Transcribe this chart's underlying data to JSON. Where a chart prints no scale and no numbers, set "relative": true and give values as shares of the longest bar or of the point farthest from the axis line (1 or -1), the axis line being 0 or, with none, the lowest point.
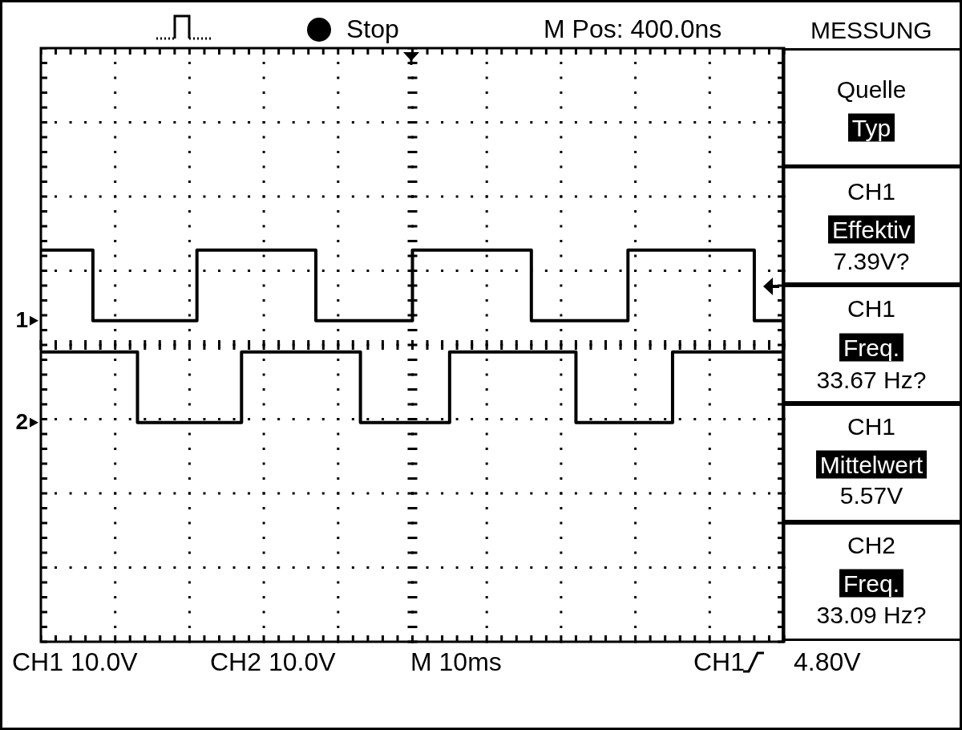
{
  "chart_data": {
    "type": "step",
    "relative": true,
    "grid": true,
    "legend": "left",
    "categories": [
      null,
      null,
      null,
      null,
      null,
      null,
      null,
      null,
      null,
      null,
      null,
      null,
      null,
      null,
      null,
      null,
      null,
      null,
      null,
      null,
      null,
      null,
      null,
      null,
      null,
      null,
      null,
      null,
      null,
      null,
      null,
      null,
      null,
      null,
      null,
      null,
      null,
      null,
      null,
      null,
      null,
      null,
      null,
      null,
      null,
      null,
      null,
      null,
      null,
      null,
      null,
      null,
      null,
      null,
      null,
      null,
      null,
      null,
      null,
      null,
      null,
      null,
      null,
      null,
      null,
      null,
      null,
      null,
      null,
      null,
      null,
      null,
      null,
      null,
      null,
      null,
      null,
      null,
      null,
      null,
      null,
      null,
      null,
      null,
      null,
      null,
      null,
      null,
      null,
      null,
      null,
      null,
      null,
      null,
      null,
      null,
      null,
      null,
      null,
      null,
      null
    ],
    "series": [
      {
        "name": "1",
        "color": "#000000",
        "values": [
          1,
          1,
          1,
          1,
          1,
          1,
          1,
          0.82,
          0.82,
          0.82,
          0.82,
          0.82,
          0.82,
          0.82,
          0.82,
          0.82,
          0.82,
          0.82,
          0.82,
          0.82,
          0.82,
          1,
          1,
          1,
          1,
          1,
          1,
          1,
          1,
          1,
          1,
          1,
          1,
          1,
          1,
          1,
          1,
          0.82,
          0.82,
          0.82,
          0.82,
          0.82,
          0.82,
          0.82,
          0.82,
          0.82,
          0.82,
          0.82,
          0.82,
          0.82,
          1,
          1,
          1,
          1,
          1,
          1,
          1,
          1,
          1,
          1,
          1,
          1,
          1,
          1,
          1,
          1,
          0.82,
          0.82,
          0.82,
          0.82,
          0.82,
          0.82,
          0.82,
          0.82,
          0.82,
          0.82,
          0.82,
          0.82,
          0.82,
          1,
          1,
          1,
          1,
          1,
          1,
          1,
          1,
          1,
          1,
          1,
          1,
          1,
          1,
          1,
          1,
          1,
          0.82,
          0.82,
          0.82,
          0.82,
          0.82
        ]
      },
      {
        "name": "2",
        "color": "#000000",
        "values": [
          0.74,
          0.74,
          0.74,
          0.74,
          0.74,
          0.74,
          0.74,
          0.74,
          0.74,
          0.74,
          0.74,
          0.74,
          0.74,
          0.56,
          0.56,
          0.56,
          0.56,
          0.56,
          0.56,
          0.56,
          0.56,
          0.56,
          0.56,
          0.56,
          0.56,
          0.56,
          0.56,
          0.74,
          0.74,
          0.74,
          0.74,
          0.74,
          0.74,
          0.74,
          0.74,
          0.74,
          0.74,
          0.74,
          0.74,
          0.74,
          0.74,
          0.74,
          0.74,
          0.56,
          0.56,
          0.56,
          0.56,
          0.56,
          0.56,
          0.56,
          0.56,
          0.56,
          0.56,
          0.56,
          0.56,
          0.74,
          0.74,
          0.74,
          0.74,
          0.74,
          0.74,
          0.74,
          0.74,
          0.74,
          0.74,
          0.74,
          0.74,
          0.74,
          0.74,
          0.74,
          0.74,
          0.74,
          0.56,
          0.56,
          0.56,
          0.56,
          0.56,
          0.56,
          0.56,
          0.56,
          0.56,
          0.56,
          0.56,
          0.56,
          0.56,
          0.74,
          0.74,
          0.74,
          0.74,
          0.74,
          0.74,
          0.74,
          0.74,
          0.74,
          0.74,
          0.74,
          0.74,
          0.74,
          0.74,
          0.74,
          0.74
        ]
      }
    ],
    "annotations": [
      "Stop",
      "M Pos: 400.0ns",
      "MESSUNG",
      "Quelle",
      "Typ",
      "CH1",
      "Effektiv",
      "7.39V?",
      "CH1",
      "Freq.",
      "33.67 Hz?",
      "CH1",
      "Mittelwert",
      "5.57V",
      "CH2",
      "Freq.",
      "33.09 Hz?",
      "CH1 10.0V",
      "CH2 10.0V",
      "M 10ms",
      "CH1",
      "4.80V"
    ]
  }
}
